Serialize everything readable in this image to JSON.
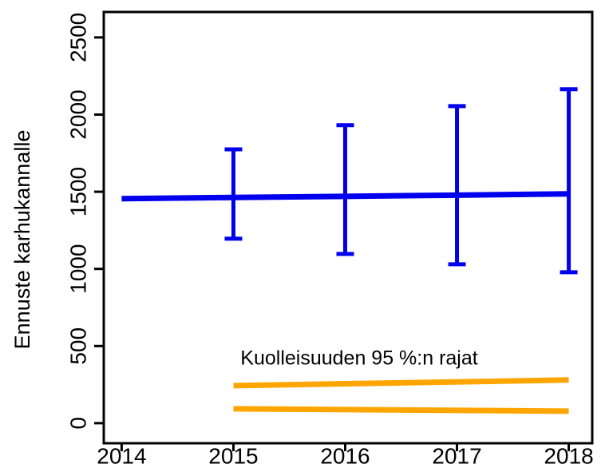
{
  "chart_data": {
    "type": "line",
    "ylabel": "Ennuste karhukannalle",
    "annotation": "Kuolleisuuden 95 %:n rajat",
    "x": [
      2014,
      2015,
      2016,
      2017,
      2018
    ],
    "series": [
      {
        "color": "#0000ee",
        "values": [
          1455,
          1463,
          1470,
          1478,
          1486
        ],
        "lower": [
          null,
          1196,
          1097,
          1030,
          978
        ],
        "upper": [
          null,
          1775,
          1931,
          2055,
          2164
        ]
      },
      {
        "color": "#ffa500",
        "x": [
          2015,
          2018
        ],
        "values": [
          243,
          280
        ]
      },
      {
        "color": "#ffa500",
        "x": [
          2015,
          2018
        ],
        "values": [
          93,
          78
        ]
      }
    ],
    "xlim": [
      2013.84,
      2018.21
    ],
    "xticks": [
      2014,
      2015,
      2016,
      2017,
      2018
    ],
    "ylim": [
      -130,
      2665
    ],
    "yticks": [
      0,
      500,
      1000,
      1500,
      2000,
      2500
    ]
  }
}
